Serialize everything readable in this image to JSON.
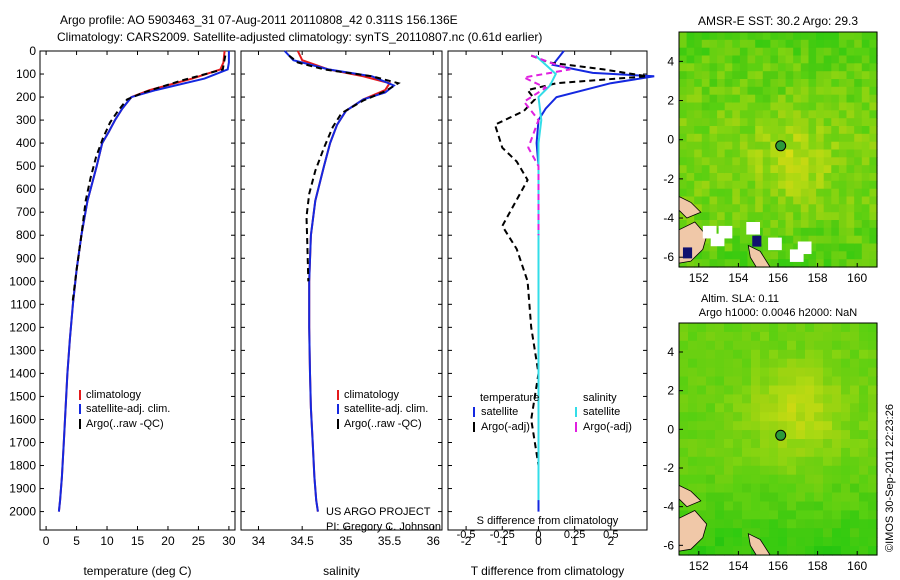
{
  "figure": {
    "title_line1": "Argo profile: AO 5903463_31 07-Aug-2011 20110808_42 0.311S 156.136E",
    "title_line2": "Climatology: CARS2009. Satellite-adjusted climatology: synTS_20110807.nc (0.61d earlier)",
    "credit": "US ARGO PROJECT",
    "pi": "PI: Gregory C. Johnson",
    "stamp": "©IMOS 30-Sep-2011 22:23:26"
  },
  "colors": {
    "climatology": "#e41a1c",
    "satellite": "#1428e0",
    "argo": "#000000",
    "sal_sat": "#33dde8",
    "sal_argo": "#e020e0",
    "land": "#f0c8a8"
  },
  "chart_data": [
    {
      "type": "line",
      "xlabel": "temperature (deg C)",
      "ylabel": "",
      "xlim": [
        -1,
        31
      ],
      "ylim": [
        2080,
        0
      ],
      "xticks": [
        0,
        5,
        10,
        15,
        20,
        25,
        30
      ],
      "yticks": [
        0,
        100,
        200,
        300,
        400,
        500,
        600,
        700,
        800,
        900,
        1000,
        1100,
        1200,
        1300,
        1400,
        1500,
        1600,
        1700,
        1800,
        1900,
        2000
      ],
      "legend": [
        "climatology",
        "satellite-adj. clim.",
        "Argo(..raw -QC)"
      ],
      "series": [
        {
          "name": "climatology",
          "style": "solid",
          "color": "#e41a1c",
          "x": [
            29.3,
            29.1,
            28.6,
            24,
            17,
            14,
            12.5,
            11.3,
            10.3,
            9.2,
            8.3,
            6.8,
            5.8,
            5,
            4.4,
            3.9,
            3.5,
            3.2,
            2.9,
            2.6,
            2.3,
            2.1
          ],
          "y": [
            0,
            50,
            80,
            120,
            170,
            200,
            250,
            300,
            350,
            400,
            500,
            650,
            800,
            950,
            1100,
            1250,
            1400,
            1550,
            1700,
            1850,
            1950,
            2000
          ]
        },
        {
          "name": "satellite-adj. clim.",
          "style": "solid",
          "color": "#1428e0",
          "x": [
            30,
            30,
            29.8,
            26,
            18,
            14,
            12.5,
            11.3,
            10.3,
            9.2,
            8.3,
            6.8,
            5.8,
            5,
            4.4,
            3.9,
            3.5,
            3.2,
            2.9,
            2.6,
            2.3,
            2.1
          ],
          "y": [
            0,
            50,
            80,
            120,
            170,
            200,
            250,
            300,
            350,
            400,
            500,
            650,
            800,
            950,
            1100,
            1250,
            1400,
            1550,
            1700,
            1850,
            1950,
            2000
          ]
        },
        {
          "name": "Argo(..raw -QC)",
          "style": "dashed",
          "color": "#000000",
          "x": [
            29.4,
            29.2,
            29,
            22,
            16,
            13.3,
            11.8,
            10.5,
            9.3,
            8.2,
            7.3,
            6.5,
            5.8,
            5,
            4.3
          ],
          "y": [
            20,
            50,
            80,
            130,
            180,
            210,
            260,
            310,
            380,
            460,
            550,
            650,
            800,
            950,
            1100
          ]
        }
      ]
    },
    {
      "type": "line",
      "xlabel": "salinity",
      "ylabel": "",
      "xlim": [
        33.8,
        36.1
      ],
      "ylim": [
        2080,
        0
      ],
      "xticks": [
        34,
        34.5,
        35,
        35.5,
        36
      ],
      "legend": [
        "climatology",
        "satellite-adj. clim.",
        "Argo(..raw -QC)"
      ],
      "series": [
        {
          "name": "climatology",
          "style": "solid",
          "color": "#e41a1c",
          "x": [
            34.45,
            34.5,
            34.8,
            35.2,
            35.5,
            35.45,
            35.2,
            35,
            34.9,
            34.82,
            34.75,
            34.65,
            34.6,
            34.58,
            34.58,
            34.59,
            34.6,
            34.62,
            34.64,
            34.66,
            34.68
          ],
          "y": [
            0,
            40,
            80,
            110,
            140,
            170,
            210,
            260,
            320,
            400,
            500,
            650,
            800,
            1000,
            1200,
            1400,
            1550,
            1700,
            1850,
            1950,
            2000
          ]
        },
        {
          "name": "satellite-adj. clim.",
          "style": "solid",
          "color": "#1428e0",
          "x": [
            34.3,
            34.4,
            34.8,
            35.3,
            35.55,
            35.45,
            35.2,
            35,
            34.9,
            34.82,
            34.75,
            34.65,
            34.6,
            34.58,
            34.58,
            34.59,
            34.6,
            34.62,
            34.64,
            34.66,
            34.68
          ],
          "y": [
            0,
            40,
            80,
            110,
            150,
            180,
            210,
            260,
            320,
            400,
            500,
            650,
            800,
            1000,
            1200,
            1400,
            1550,
            1700,
            1850,
            1950,
            2000
          ]
        },
        {
          "name": "Argo(..raw -QC)",
          "style": "dashed",
          "color": "#000000",
          "x": [
            34.35,
            34.45,
            34.75,
            35.3,
            35.6,
            35.45,
            35.2,
            34.95,
            34.85,
            34.75,
            34.65,
            34.58,
            34.55,
            34.56,
            34.57
          ],
          "y": [
            20,
            50,
            80,
            110,
            140,
            175,
            215,
            270,
            330,
            420,
            520,
            620,
            720,
            850,
            1000
          ]
        }
      ]
    },
    {
      "type": "line",
      "xlabel": "T difference from climatology",
      "x2label": "S difference from climatology",
      "xlim": [
        -2.5,
        3
      ],
      "x2lim": [
        -0.625,
        0.75
      ],
      "ylim": [
        2080,
        0
      ],
      "xticks": [
        -2,
        -1,
        0,
        1,
        2
      ],
      "x2ticks": [
        "-0.5",
        "-0.25",
        "0",
        "0.25",
        "0.5"
      ],
      "legend_headers": [
        "temperature",
        "salinity"
      ],
      "legend": [
        "satellite",
        "Argo(-adj)",
        "satellite",
        "Argo(-adj)"
      ],
      "series": [
        {
          "name": "temperature satellite",
          "style": "solid",
          "color": "#1428e0",
          "x": [
            0.7,
            0.4,
            1.5,
            3.2,
            2,
            0.5,
            0.2,
            0,
            -0.05,
            0,
            0,
            0,
            0,
            0,
            0,
            0,
            0,
            0,
            0
          ],
          "y": [
            0,
            60,
            95,
            110,
            140,
            200,
            250,
            300,
            400,
            500,
            700,
            900,
            1100,
            1300,
            1500,
            1700,
            1850,
            1950,
            2000
          ]
        },
        {
          "name": "temperature Argo(-adj)",
          "style": "dashed",
          "color": "#000000",
          "x": [
            -0.2,
            0.3,
            1.8,
            3,
            0.5,
            -0.3,
            -0.1,
            -0.4,
            -1.2,
            -1,
            -0.6,
            -0.3,
            -1,
            -0.6,
            -0.3,
            -0.2,
            0,
            -0.2,
            0
          ],
          "y": [
            20,
            50,
            80,
            110,
            140,
            170,
            210,
            260,
            320,
            420,
            480,
            560,
            760,
            860,
            1000,
            1200,
            1400,
            1600,
            1800
          ]
        },
        {
          "name": "salinity satellite",
          "style": "solid",
          "color": "#33dde8",
          "x": [
            -0.02,
            0.05,
            0.12,
            0.08,
            0,
            0.02,
            0,
            0,
            0,
            0,
            0,
            0,
            0,
            0
          ],
          "y": [
            20,
            60,
            100,
            150,
            200,
            300,
            400,
            600,
            800,
            1000,
            1300,
            1600,
            1800,
            1950
          ]
        },
        {
          "name": "salinity Argo(-adj)",
          "style": "dashed",
          "color": "#e020e0",
          "x": [
            -0.05,
            0.08,
            0.22,
            -0.1,
            0.05,
            -0.1,
            0,
            -0.07,
            0,
            0,
            0
          ],
          "y": [
            20,
            50,
            80,
            115,
            160,
            220,
            300,
            420,
            500,
            650,
            800
          ]
        }
      ]
    },
    {
      "type": "heatmap",
      "title": "AMSR-E SST: 30.2 Argo: 29.3",
      "xlim": [
        151,
        161
      ],
      "ylim": [
        -6.5,
        5.5
      ],
      "xticks": [
        152,
        154,
        156,
        158,
        160
      ],
      "yticks": [
        -6,
        -4,
        -2,
        0,
        2,
        4
      ],
      "marker": {
        "lon": 156.136,
        "lat": -0.311
      }
    },
    {
      "type": "heatmap",
      "title_line1": "Altim. SLA: 0.11",
      "title_line2": "Argo h1000: 0.0046 h2000: NaN",
      "xlim": [
        151,
        161
      ],
      "ylim": [
        -6.5,
        5.5
      ],
      "xticks": [
        152,
        154,
        156,
        158,
        160
      ],
      "yticks": [
        -6,
        -4,
        -2,
        0,
        2,
        4
      ],
      "marker": {
        "lon": 156.136,
        "lat": -0.311
      }
    }
  ]
}
